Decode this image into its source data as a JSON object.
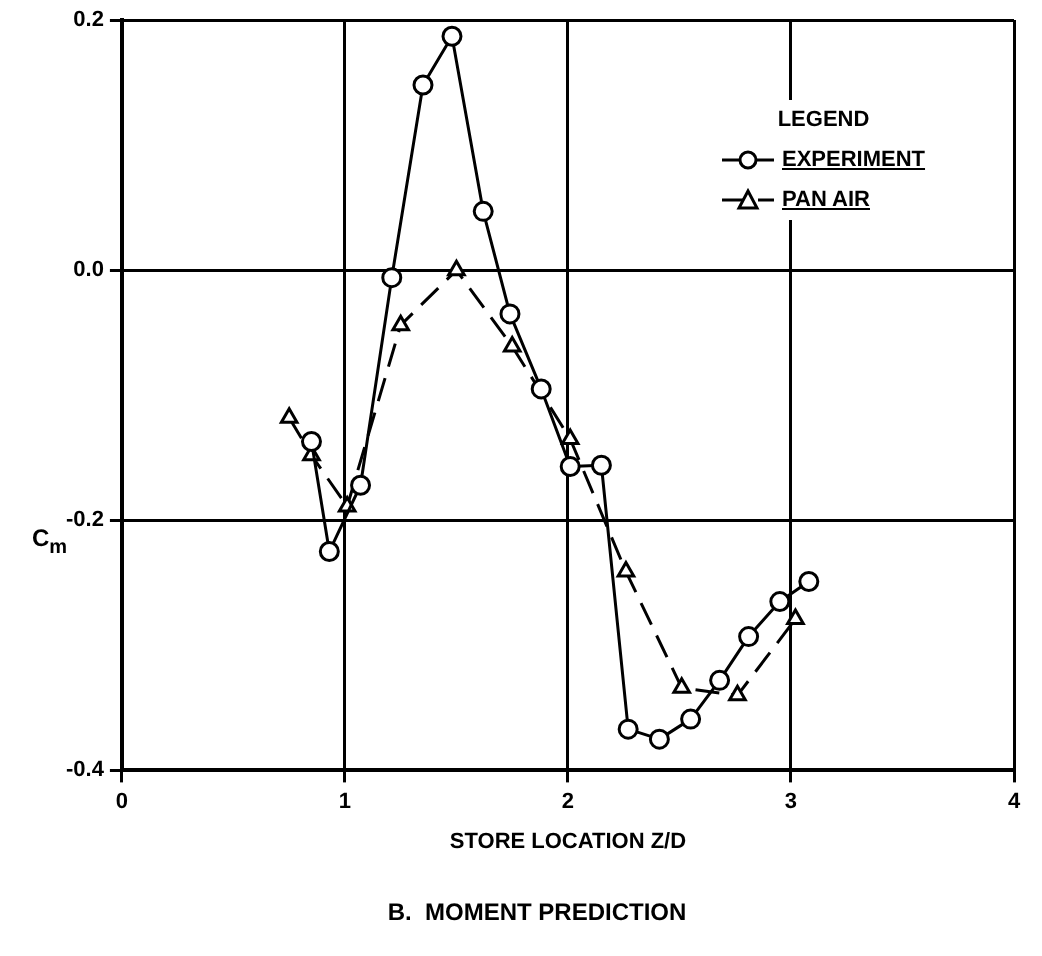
{
  "chart_data": {
    "type": "line",
    "title": "B.  MOMENT PREDICTION",
    "xlabel": "STORE LOCATION Z/D",
    "ylabel": "C$_{m}$",
    "legend_title": "LEGEND",
    "legend": "top right",
    "grid": true,
    "xlim": [
      0,
      4
    ],
    "xticks": [
      0,
      1,
      2,
      3,
      4
    ],
    "ylim": [
      -0.4,
      0.2
    ],
    "yticks": [
      -0.4,
      -0.2,
      {
        "value": 0,
        "label": "0.0"
      },
      0.2
    ],
    "series": [
      {
        "name": "EXPERIMENT",
        "color": "#000000",
        "marker": "circle",
        "line_style": "solid",
        "x": [
          0.85,
          0.93,
          1.07,
          1.21,
          1.35,
          1.48,
          1.62,
          1.74,
          1.88,
          2.01,
          2.15,
          2.27,
          2.41,
          2.55,
          2.68,
          2.81,
          2.95,
          3.08
        ],
        "values": [
          -0.137,
          -0.225,
          -0.172,
          -0.006,
          0.148,
          0.187,
          0.047,
          -0.035,
          -0.095,
          -0.157,
          -0.156,
          -0.367,
          -0.375,
          -0.359,
          -0.328,
          -0.293,
          -0.265,
          -0.249
        ]
      },
      {
        "name": "PAN AIR",
        "color": "#000000",
        "marker": "triangle",
        "line_style": "dashed",
        "x": [
          0.75,
          0.85,
          1.01,
          1.25,
          1.5,
          1.75,
          2.01,
          2.26,
          2.51,
          2.76,
          3.02
        ],
        "values": [
          -0.118,
          -0.148,
          -0.189,
          -0.044,
          0,
          -0.061,
          -0.135,
          -0.241,
          -0.334,
          -0.34,
          -0.279
        ]
      }
    ]
  }
}
